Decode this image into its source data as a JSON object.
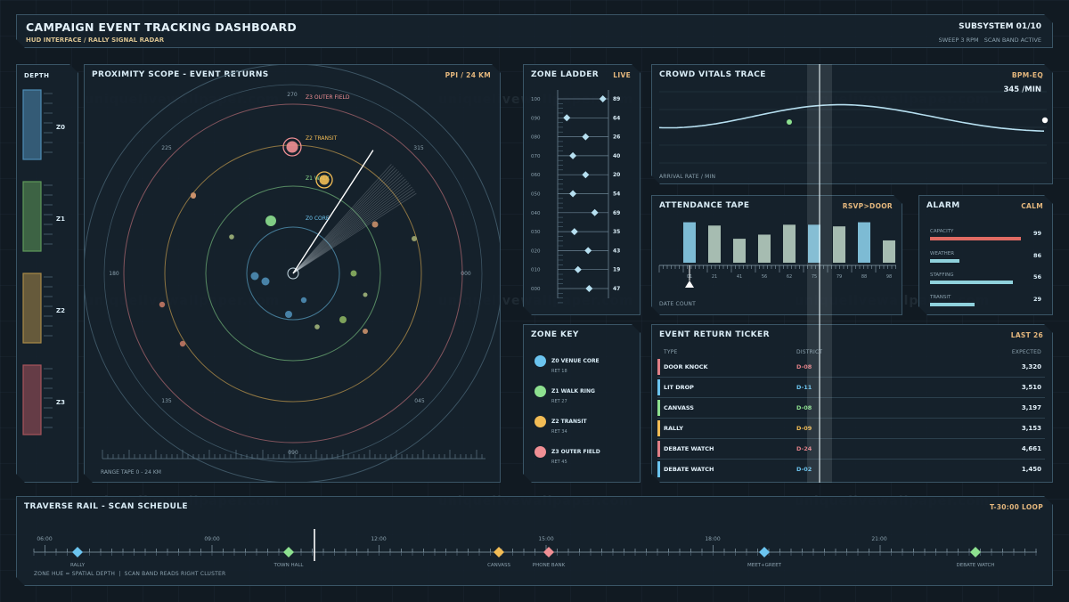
{
  "header": {
    "title": "CAMPAIGN EVENT TRACKING DASHBOARD",
    "subtitle": "HUD INTERFACE / RALLY SIGNAL RADAR",
    "subsystem": "SUBSYSTEM 01/10",
    "status": "SWEEP 3 RPM   SCAN BAND ACTIVE"
  },
  "watermark": "uniquelivewallpaper.com",
  "depth": {
    "title": "DEPTH",
    "zones": [
      {
        "label": "Z0",
        "color": "#4e8db5"
      },
      {
        "label": "Z1",
        "color": "#5f9a5a"
      },
      {
        "label": "Z2",
        "color": "#a98a48"
      },
      {
        "label": "Z3",
        "color": "#a8545c"
      }
    ]
  },
  "radar": {
    "title": "PROXIMITY SCOPE - EVENT RETURNS",
    "tag": "PPI / 24 KM",
    "bearings": [
      "270",
      "315",
      "000",
      "045",
      "090",
      "135",
      "180",
      "225"
    ],
    "labels": {
      "outer": "Z3 OUTER FIELD",
      "transit": "Z2 TRANSIT",
      "walk": "Z1 WALK",
      "core": "Z0 CORE"
    },
    "range_label": "RANGE TAPE  0 - 24 KM"
  },
  "ladder": {
    "title": "ZONE LADDER",
    "tag": "LIVE",
    "rows": [
      {
        "label": "100",
        "value": "89",
        "pos": 0.89
      },
      {
        "label": "090",
        "value": "64",
        "pos": 0.18
      },
      {
        "label": "080",
        "value": "26",
        "pos": 0.55
      },
      {
        "label": "070",
        "value": "40",
        "pos": 0.3
      },
      {
        "label": "060",
        "value": "20",
        "pos": 0.55
      },
      {
        "label": "050",
        "value": "54",
        "pos": 0.3
      },
      {
        "label": "040",
        "value": "69",
        "pos": 0.73
      },
      {
        "label": "030",
        "value": "35",
        "pos": 0.33
      },
      {
        "label": "020",
        "value": "43",
        "pos": 0.6
      },
      {
        "label": "010",
        "value": "19",
        "pos": 0.4
      },
      {
        "label": "000",
        "value": "47",
        "pos": 0.62
      }
    ]
  },
  "vitals": {
    "title": "CROWD VITALS TRACE",
    "tag": "BPM-EQ",
    "value": "345 /MIN",
    "footer": "ARRIVAL RATE / MIN"
  },
  "attendance": {
    "title": "ATTENDANCE TAPE",
    "tag": "RSVP>DOOR",
    "footer": "DATE COUNT",
    "ticks": [
      "01",
      "21",
      "41",
      "56",
      "62",
      "75",
      "79",
      "88",
      "98"
    ]
  },
  "chart_data": {
    "type": "bar",
    "categories": [
      "01",
      "21",
      "41",
      "56",
      "62",
      "75",
      "79",
      "88",
      "98"
    ],
    "values": [
      49,
      45,
      29,
      34,
      46,
      46,
      44,
      49,
      27
    ],
    "ylim": [
      0,
      55
    ]
  },
  "alarm": {
    "title": "ALARM",
    "tag": "CALM",
    "items": [
      {
        "label": "CAPACITY",
        "value": "99",
        "level": 0.99,
        "color": "#e06b63"
      },
      {
        "label": "WEATHER",
        "value": "86",
        "level": 0.32,
        "color": "#8fd1dc"
      },
      {
        "label": "STAFFING",
        "value": "56",
        "level": 0.9,
        "color": "#8fd1dc"
      },
      {
        "label": "TRANSIT",
        "value": "29",
        "level": 0.49,
        "color": "#8fd1dc"
      }
    ]
  },
  "zonekey": {
    "title": "ZONE KEY",
    "items": [
      {
        "name": "Z0 VENUE CORE",
        "ret": "RET 18",
        "color": "#6bc4ef"
      },
      {
        "name": "Z1 WALK RING",
        "ret": "RET 27",
        "color": "#8de08f"
      },
      {
        "name": "Z2 TRANSIT",
        "ret": "RET 34",
        "color": "#f2bc55"
      },
      {
        "name": "Z3 OUTER FIELD",
        "ret": "RET 45",
        "color": "#f08f94"
      }
    ]
  },
  "ticker": {
    "title": "EVENT RETURN TICKER",
    "tag": "LAST 26",
    "col_type": "TYPE",
    "col_district": "DISTRICT",
    "col_expected": "EXPECTED",
    "rows": [
      {
        "type": "DOOR KNOCK",
        "district": "D-08",
        "expected": "3,320",
        "color": "#e07f86"
      },
      {
        "type": "LIT DROP",
        "district": "D-11",
        "expected": "3,510",
        "color": "#6bc4ef"
      },
      {
        "type": "CANVASS",
        "district": "D-08",
        "expected": "3,197",
        "color": "#8de08f"
      },
      {
        "type": "RALLY",
        "district": "D-09",
        "expected": "3,153",
        "color": "#f2bc55"
      },
      {
        "type": "DEBATE WATCH",
        "district": "D-24",
        "expected": "4,661",
        "color": "#e07f86"
      },
      {
        "type": "DEBATE WATCH",
        "district": "D-02",
        "expected": "1,450",
        "color": "#6bc4ef"
      }
    ]
  },
  "rail": {
    "title": "TRAVERSE RAIL - SCAN SCHEDULE",
    "tag": "T-30:00 LOOP",
    "times": [
      "06:00",
      "09:00",
      "12:00",
      "15:00",
      "18:00",
      "21:00"
    ],
    "events": [
      {
        "label": "RALLY",
        "color": "#6bc4ef"
      },
      {
        "label": "TOWN HALL",
        "color": "#8de08f"
      },
      {
        "label": "CANVASS",
        "color": "#f2bc55"
      },
      {
        "label": "PHONE BANK",
        "color": "#f08f94"
      },
      {
        "label": "MEET+GREET",
        "color": "#6bc4ef"
      },
      {
        "label": "DEBATE WATCH",
        "color": "#8de08f"
      }
    ],
    "footer": "ZONE HUE = SPATIAL DEPTH  |  SCAN BAND READS RIGHT CLUSTER"
  }
}
